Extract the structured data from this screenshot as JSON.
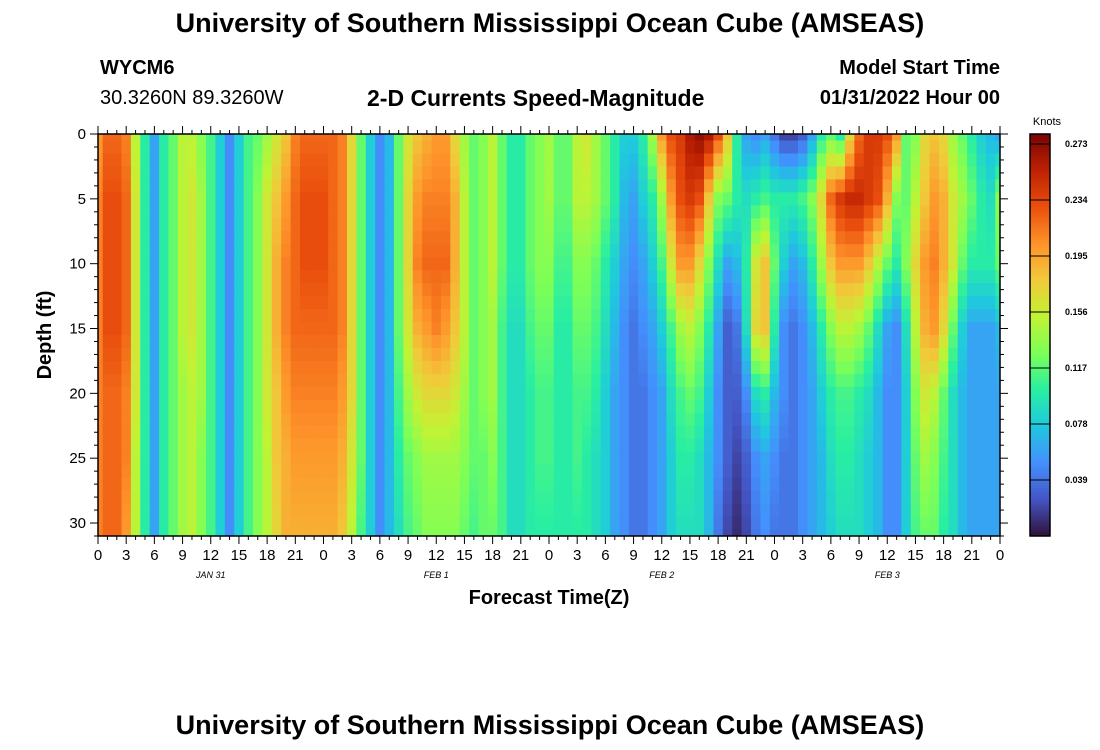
{
  "page": {
    "title_top": "University of Southern Mississippi Ocean Cube (AMSEAS)",
    "title_bottom": "University of Southern Mississippi Ocean Cube (AMSEAS)",
    "station_id": "WYCM6",
    "station_coords": "30.3260N  89.3260W",
    "subtitle": "2-D Currents Speed-Magnitude",
    "model_start_label": "Model Start Time",
    "model_start_value": "01/31/2022 Hour 00"
  },
  "colors": {
    "palette": [
      "#30123b",
      "#4454c4",
      "#4490fe",
      "#1fc8de",
      "#29efa2",
      "#7dff56",
      "#c1f334",
      "#f1ca3a",
      "#fe922a",
      "#ea4f0d",
      "#be2102",
      "#7a0403"
    ],
    "axis": "#000000",
    "background": "#ffffff"
  },
  "chart_data": {
    "type": "heatmap",
    "title": "2-D Currents Speed-Magnitude",
    "xlabel": "Forecast Time(Z)",
    "ylabel": "Depth (ft)",
    "x_ticks": [
      "0",
      "3",
      "6",
      "9",
      "12",
      "15",
      "18",
      "21",
      "0",
      "3",
      "6",
      "9",
      "12",
      "15",
      "18",
      "21",
      "0",
      "3",
      "6",
      "9",
      "12",
      "15",
      "18",
      "21",
      "0",
      "3",
      "6",
      "9",
      "12",
      "15",
      "18",
      "21",
      "0"
    ],
    "x_range_hours": [
      0,
      96
    ],
    "date_labels": [
      {
        "label": "JAN 31",
        "hour": 12
      },
      {
        "label": "FEB 1",
        "hour": 36
      },
      {
        "label": "FEB 2",
        "hour": 60
      },
      {
        "label": "FEB 3",
        "hour": 84
      }
    ],
    "y_ticks": [
      "0",
      "5",
      "10",
      "15",
      "20",
      "25",
      "30"
    ],
    "y_range": [
      0,
      31
    ],
    "colorbar": {
      "unit": "Knots",
      "ticks": [
        "0.273",
        "0.234",
        "0.195",
        "0.156",
        "0.117",
        "0.078",
        "0.039"
      ],
      "tick_values": [
        0.273,
        0.234,
        0.195,
        0.156,
        0.117,
        0.078,
        0.039
      ],
      "range": [
        0,
        0.28
      ]
    },
    "grid_hours": [
      0,
      1,
      2,
      3,
      4,
      5,
      6,
      7,
      8,
      9,
      10,
      11,
      12,
      13,
      14,
      15,
      16,
      17,
      18,
      19,
      20,
      21,
      22,
      23,
      24,
      25,
      26,
      27,
      28,
      29,
      30,
      31,
      32,
      33,
      34,
      35,
      36,
      37,
      38,
      39,
      40,
      41,
      42,
      43,
      44,
      45,
      46,
      47,
      48,
      49,
      50,
      51,
      52,
      53,
      54,
      55,
      56,
      57,
      58,
      59,
      60,
      61,
      62,
      63,
      64,
      65,
      66,
      67,
      68,
      69,
      70,
      71,
      72,
      73,
      74,
      75,
      76,
      77,
      78,
      79,
      80,
      81,
      82,
      83,
      84,
      85,
      86,
      87,
      88,
      89,
      90,
      91,
      92,
      93,
      94,
      95,
      96
    ],
    "depths_ft": [
      0,
      5,
      10,
      15,
      20,
      25,
      31
    ],
    "speed_by_depth": [
      [
        0.2,
        0.22,
        0.22,
        0.21,
        0.15,
        0.1,
        0.06,
        0.1,
        0.12,
        0.15,
        0.15,
        0.13,
        0.11,
        0.08,
        0.05,
        0.08,
        0.11,
        0.12,
        0.14,
        0.16,
        0.18,
        0.21,
        0.22,
        0.22,
        0.22,
        0.22,
        0.21,
        0.17,
        0.12,
        0.08,
        0.05,
        0.07,
        0.12,
        0.16,
        0.18,
        0.19,
        0.2,
        0.2,
        0.17,
        0.14,
        0.12,
        0.13,
        0.15,
        0.12,
        0.1,
        0.1,
        0.12,
        0.13,
        0.14,
        0.12,
        0.12,
        0.15,
        0.16,
        0.14,
        0.12,
        0.1,
        0.08,
        0.08,
        0.1,
        0.14,
        0.2,
        0.23,
        0.24,
        0.26,
        0.27,
        0.26,
        0.23,
        0.18,
        0.1,
        0.06,
        0.05,
        0.06,
        0.04,
        0.02,
        0.02,
        0.03,
        0.06,
        0.1,
        0.12,
        0.1,
        0.17,
        0.22,
        0.24,
        0.24,
        0.23,
        0.2,
        0.12,
        0.13,
        0.17,
        0.18,
        0.17,
        0.14,
        0.12,
        0.1,
        0.08,
        0.07,
        0.06
      ],
      [
        0.21,
        0.23,
        0.23,
        0.22,
        0.16,
        0.1,
        0.06,
        0.1,
        0.12,
        0.15,
        0.16,
        0.14,
        0.11,
        0.08,
        0.05,
        0.08,
        0.11,
        0.13,
        0.16,
        0.18,
        0.2,
        0.22,
        0.23,
        0.23,
        0.23,
        0.22,
        0.21,
        0.17,
        0.12,
        0.08,
        0.05,
        0.07,
        0.12,
        0.17,
        0.2,
        0.21,
        0.21,
        0.21,
        0.19,
        0.15,
        0.12,
        0.13,
        0.15,
        0.12,
        0.1,
        0.1,
        0.12,
        0.13,
        0.14,
        0.12,
        0.12,
        0.15,
        0.15,
        0.14,
        0.12,
        0.1,
        0.07,
        0.06,
        0.08,
        0.1,
        0.14,
        0.2,
        0.23,
        0.24,
        0.23,
        0.18,
        0.13,
        0.12,
        0.1,
        0.09,
        0.1,
        0.11,
        0.1,
        0.1,
        0.1,
        0.11,
        0.13,
        0.17,
        0.22,
        0.24,
        0.25,
        0.25,
        0.24,
        0.23,
        0.19,
        0.13,
        0.12,
        0.15,
        0.18,
        0.2,
        0.19,
        0.16,
        0.14,
        0.12,
        0.1,
        0.09,
        0.13
      ],
      [
        0.21,
        0.23,
        0.23,
        0.22,
        0.16,
        0.1,
        0.06,
        0.1,
        0.12,
        0.15,
        0.16,
        0.14,
        0.11,
        0.08,
        0.05,
        0.08,
        0.11,
        0.13,
        0.16,
        0.19,
        0.21,
        0.22,
        0.23,
        0.23,
        0.23,
        0.22,
        0.21,
        0.17,
        0.12,
        0.08,
        0.05,
        0.07,
        0.12,
        0.17,
        0.21,
        0.22,
        0.22,
        0.22,
        0.19,
        0.15,
        0.12,
        0.13,
        0.15,
        0.12,
        0.1,
        0.1,
        0.12,
        0.13,
        0.13,
        0.11,
        0.11,
        0.13,
        0.13,
        0.12,
        0.1,
        0.08,
        0.06,
        0.05,
        0.06,
        0.08,
        0.11,
        0.16,
        0.2,
        0.2,
        0.17,
        0.13,
        0.09,
        0.06,
        0.07,
        0.1,
        0.16,
        0.18,
        0.12,
        0.08,
        0.06,
        0.07,
        0.1,
        0.14,
        0.18,
        0.2,
        0.2,
        0.2,
        0.18,
        0.15,
        0.12,
        0.1,
        0.13,
        0.17,
        0.2,
        0.21,
        0.19,
        0.16,
        0.12,
        0.1,
        0.1,
        0.1,
        0.12
      ],
      [
        0.21,
        0.23,
        0.23,
        0.22,
        0.16,
        0.1,
        0.06,
        0.1,
        0.12,
        0.15,
        0.16,
        0.14,
        0.11,
        0.08,
        0.05,
        0.08,
        0.11,
        0.13,
        0.16,
        0.19,
        0.21,
        0.22,
        0.22,
        0.22,
        0.22,
        0.22,
        0.21,
        0.17,
        0.12,
        0.08,
        0.05,
        0.07,
        0.12,
        0.16,
        0.19,
        0.2,
        0.21,
        0.2,
        0.18,
        0.15,
        0.12,
        0.13,
        0.14,
        0.11,
        0.09,
        0.09,
        0.11,
        0.12,
        0.12,
        0.1,
        0.1,
        0.12,
        0.12,
        0.11,
        0.09,
        0.07,
        0.05,
        0.04,
        0.05,
        0.06,
        0.08,
        0.11,
        0.14,
        0.15,
        0.13,
        0.1,
        0.06,
        0.03,
        0.04,
        0.09,
        0.17,
        0.18,
        0.1,
        0.05,
        0.04,
        0.05,
        0.07,
        0.1,
        0.13,
        0.15,
        0.15,
        0.14,
        0.12,
        0.09,
        0.06,
        0.05,
        0.09,
        0.15,
        0.19,
        0.2,
        0.17,
        0.12,
        0.08,
        0.06,
        0.06,
        0.06,
        0.07
      ],
      [
        0.21,
        0.22,
        0.22,
        0.21,
        0.16,
        0.1,
        0.06,
        0.1,
        0.12,
        0.14,
        0.15,
        0.14,
        0.11,
        0.08,
        0.05,
        0.08,
        0.11,
        0.13,
        0.16,
        0.18,
        0.2,
        0.21,
        0.21,
        0.21,
        0.21,
        0.21,
        0.2,
        0.17,
        0.12,
        0.08,
        0.05,
        0.07,
        0.11,
        0.14,
        0.16,
        0.17,
        0.17,
        0.17,
        0.16,
        0.14,
        0.12,
        0.13,
        0.14,
        0.11,
        0.09,
        0.09,
        0.1,
        0.11,
        0.11,
        0.1,
        0.1,
        0.11,
        0.11,
        0.1,
        0.08,
        0.06,
        0.05,
        0.04,
        0.04,
        0.05,
        0.06,
        0.09,
        0.11,
        0.12,
        0.11,
        0.08,
        0.05,
        0.03,
        0.03,
        0.05,
        0.09,
        0.1,
        0.07,
        0.05,
        0.04,
        0.05,
        0.06,
        0.08,
        0.1,
        0.11,
        0.11,
        0.1,
        0.09,
        0.07,
        0.05,
        0.05,
        0.08,
        0.13,
        0.16,
        0.15,
        0.12,
        0.09,
        0.07,
        0.06,
        0.06,
        0.06,
        0.06
      ],
      [
        0.21,
        0.22,
        0.22,
        0.21,
        0.15,
        0.1,
        0.06,
        0.1,
        0.12,
        0.14,
        0.15,
        0.13,
        0.11,
        0.08,
        0.05,
        0.08,
        0.11,
        0.13,
        0.15,
        0.18,
        0.19,
        0.2,
        0.2,
        0.2,
        0.2,
        0.2,
        0.19,
        0.16,
        0.12,
        0.08,
        0.05,
        0.07,
        0.1,
        0.12,
        0.13,
        0.14,
        0.14,
        0.14,
        0.14,
        0.13,
        0.12,
        0.12,
        0.13,
        0.11,
        0.09,
        0.09,
        0.1,
        0.11,
        0.11,
        0.1,
        0.1,
        0.11,
        0.1,
        0.09,
        0.08,
        0.06,
        0.05,
        0.04,
        0.04,
        0.05,
        0.06,
        0.08,
        0.1,
        0.1,
        0.09,
        0.07,
        0.05,
        0.03,
        0.02,
        0.03,
        0.05,
        0.06,
        0.05,
        0.04,
        0.04,
        0.05,
        0.06,
        0.07,
        0.09,
        0.1,
        0.1,
        0.09,
        0.08,
        0.07,
        0.05,
        0.05,
        0.08,
        0.12,
        0.14,
        0.13,
        0.11,
        0.09,
        0.07,
        0.06,
        0.06,
        0.06,
        0.06
      ],
      [
        0.21,
        0.22,
        0.22,
        0.2,
        0.15,
        0.1,
        0.06,
        0.1,
        0.12,
        0.14,
        0.15,
        0.13,
        0.11,
        0.08,
        0.05,
        0.08,
        0.11,
        0.13,
        0.15,
        0.17,
        0.19,
        0.19,
        0.19,
        0.19,
        0.19,
        0.19,
        0.18,
        0.15,
        0.11,
        0.08,
        0.05,
        0.07,
        0.09,
        0.11,
        0.12,
        0.13,
        0.13,
        0.13,
        0.13,
        0.12,
        0.11,
        0.12,
        0.12,
        0.11,
        0.09,
        0.09,
        0.1,
        0.1,
        0.1,
        0.1,
        0.1,
        0.1,
        0.1,
        0.09,
        0.08,
        0.06,
        0.05,
        0.04,
        0.04,
        0.05,
        0.06,
        0.08,
        0.09,
        0.09,
        0.09,
        0.07,
        0.04,
        0.02,
        0.01,
        0.02,
        0.04,
        0.05,
        0.04,
        0.04,
        0.04,
        0.05,
        0.06,
        0.07,
        0.08,
        0.09,
        0.09,
        0.09,
        0.08,
        0.07,
        0.05,
        0.05,
        0.08,
        0.11,
        0.12,
        0.12,
        0.1,
        0.09,
        0.07,
        0.06,
        0.06,
        0.06,
        0.06
      ]
    ]
  }
}
